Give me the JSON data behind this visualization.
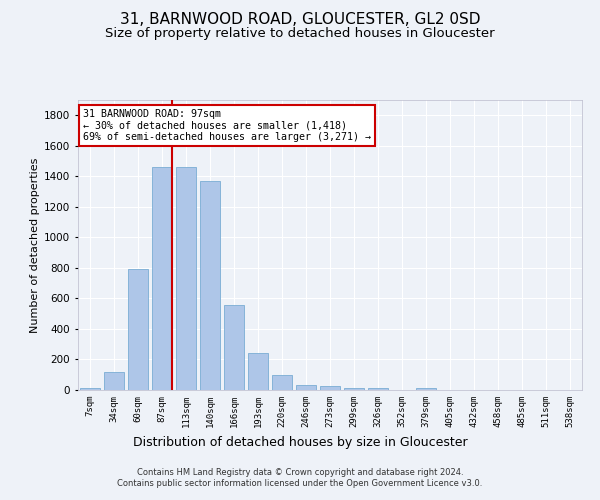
{
  "title1": "31, BARNWOOD ROAD, GLOUCESTER, GL2 0SD",
  "title2": "Size of property relative to detached houses in Gloucester",
  "xlabel": "Distribution of detached houses by size in Gloucester",
  "ylabel": "Number of detached properties",
  "categories": [
    "7sqm",
    "34sqm",
    "60sqm",
    "87sqm",
    "113sqm",
    "140sqm",
    "166sqm",
    "193sqm",
    "220sqm",
    "246sqm",
    "273sqm",
    "299sqm",
    "326sqm",
    "352sqm",
    "379sqm",
    "405sqm",
    "432sqm",
    "458sqm",
    "485sqm",
    "511sqm",
    "538sqm"
  ],
  "values": [
    10,
    120,
    790,
    1460,
    1460,
    1370,
    560,
    245,
    100,
    35,
    25,
    15,
    15,
    0,
    15,
    0,
    0,
    0,
    0,
    0,
    0
  ],
  "bar_color": "#aec6e8",
  "bar_edge_color": "#7aadd4",
  "vline_color": "#cc0000",
  "vline_x_index": 3,
  "annotation_text": "31 BARNWOOD ROAD: 97sqm\n← 30% of detached houses are smaller (1,418)\n69% of semi-detached houses are larger (3,271) →",
  "annotation_box_color": "#ffffff",
  "annotation_box_edge": "#cc0000",
  "ylim": [
    0,
    1900
  ],
  "yticks": [
    0,
    200,
    400,
    600,
    800,
    1000,
    1200,
    1400,
    1600,
    1800
  ],
  "bg_color": "#eef2f8",
  "grid_color": "#ffffff",
  "title1_fontsize": 11,
  "title2_fontsize": 9.5,
  "xlabel_fontsize": 9,
  "ylabel_fontsize": 8,
  "footer1": "Contains HM Land Registry data © Crown copyright and database right 2024.",
  "footer2": "Contains public sector information licensed under the Open Government Licence v3.0."
}
